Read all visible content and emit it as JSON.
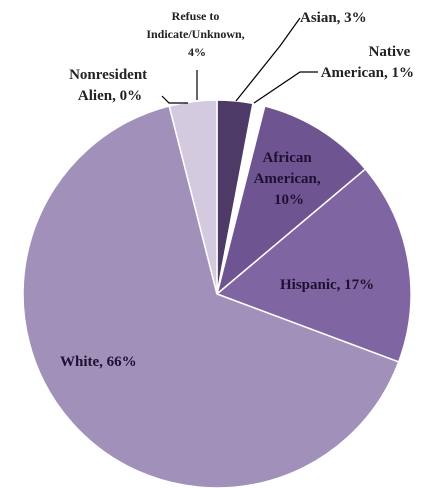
{
  "chart_data": {
    "type": "pie",
    "title": "",
    "slices": [
      {
        "name": "Asian",
        "value": 3,
        "label": "Asian, 3%",
        "color": "#4d3a66"
      },
      {
        "name": "Native American",
        "value": 1,
        "label": "Native American, 1%",
        "color": "#ffffff"
      },
      {
        "name": "African American",
        "value": 10,
        "label": "African American, 10%",
        "color": "#6e5591"
      },
      {
        "name": "Hispanic",
        "value": 17,
        "label": "Hispanic, 17%",
        "color": "#8065a3"
      },
      {
        "name": "White",
        "value": 66,
        "label": "White, 66%",
        "color": "#a190b9"
      },
      {
        "name": "Nonresident Alien",
        "value": 0,
        "label": "Nonresident Alien, 0%",
        "color": "#8c7aa8"
      },
      {
        "name": "Refuse to Indicate/Unknown",
        "value": 4,
        "label": "Refuse to Indicate/Unknown, 4%",
        "color": "#d3cadf"
      }
    ],
    "label_lines": {
      "asian": "Asian, 3%",
      "native_1": "Native",
      "native_2": "American, 1%",
      "african_1": "African",
      "african_2": "American,",
      "african_3": "10%",
      "hispanic": "Hispanic, 17%",
      "white": "White, 66%",
      "nonres_1": "Nonresident",
      "nonres_2": "Alien, 0%",
      "refuse_1": "Refuse to",
      "refuse_2": "Indicate/Unknown,",
      "refuse_3": "4%"
    }
  }
}
